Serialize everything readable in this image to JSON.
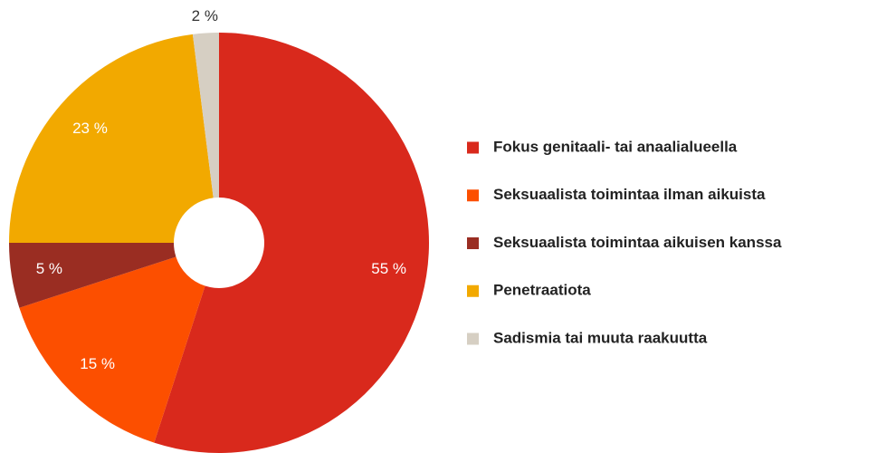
{
  "chart_data": {
    "type": "pie",
    "categories": [
      "Fokus genitaali- tai anaalialueella",
      "Seksuaalista toimintaa ilman aikuista",
      "Seksuaalista toimintaa aikuisen kanssa",
      "Penetraatiota",
      "Sadismia tai muuta raakuutta"
    ],
    "values": [
      55,
      15,
      5,
      23,
      2
    ],
    "value_labels": [
      "55 %",
      "15 %",
      "5 %",
      "23 %",
      "2 %"
    ],
    "colors": [
      "#d9291c",
      "#fc4f00",
      "#9a2d22",
      "#f2a900",
      "#d6cfc3"
    ],
    "legend": "right"
  }
}
